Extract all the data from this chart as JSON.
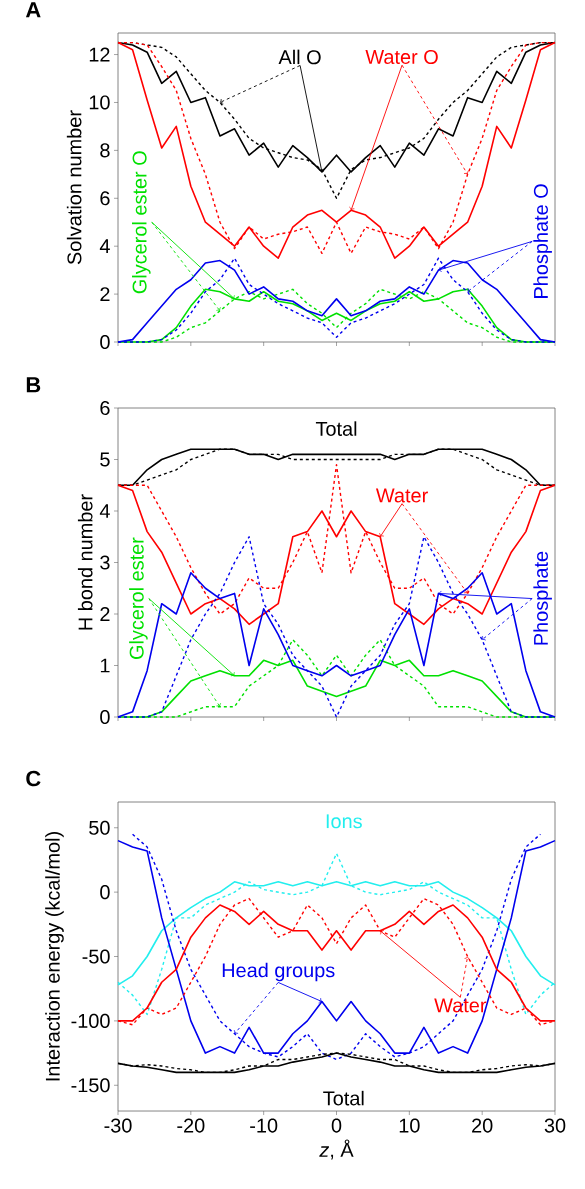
{
  "chart_data": [
    {
      "type": "line",
      "title": "A",
      "ylabel": "Solvation number",
      "xlim": [
        -30,
        30
      ],
      "ylim": [
        0,
        12.9
      ],
      "xticks": [
        -30,
        -20,
        -10,
        0,
        10,
        20,
        30
      ],
      "yticks": [
        0,
        2,
        4,
        6,
        8,
        10,
        12
      ],
      "tick_labels": "y",
      "x": [
        -30,
        -28,
        -26,
        -24,
        -22,
        -20,
        -18,
        -16,
        -14,
        -12,
        -10,
        -8,
        -6,
        -4,
        -2,
        0,
        2,
        4,
        6,
        8,
        10,
        12,
        14,
        16,
        18,
        20,
        22,
        24,
        26,
        28,
        30
      ],
      "series": [
        {
          "name": "All O",
          "color": "#000000",
          "line_style": "solid",
          "values": [
            12.5,
            12.4,
            12.1,
            10.8,
            11.3,
            10.0,
            10.2,
            8.6,
            8.9,
            7.8,
            8.3,
            7.3,
            8.2,
            7.7,
            7.1,
            7.8,
            7.1,
            7.7,
            8.2,
            7.3,
            8.3,
            7.8,
            8.9,
            8.6,
            10.2,
            10.0,
            11.3,
            10.8,
            12.1,
            12.4,
            12.5
          ]
        },
        {
          "color": "#000000",
          "line_style": "dashed",
          "values": [
            12.5,
            12.5,
            12.4,
            12.3,
            11.9,
            11.2,
            10.5,
            10.0,
            9.3,
            8.5,
            8.1,
            7.9,
            7.7,
            7.6,
            7.2,
            6.0,
            7.2,
            7.6,
            7.7,
            7.9,
            8.1,
            8.5,
            9.3,
            10.0,
            10.5,
            11.2,
            11.9,
            12.3,
            12.4,
            12.5,
            12.5
          ]
        },
        {
          "name": "Water O",
          "color": "#ff0000",
          "line_style": "solid",
          "values": [
            12.5,
            12.2,
            10.1,
            8.1,
            9.0,
            6.5,
            5.0,
            4.5,
            4.0,
            4.8,
            4.0,
            3.5,
            4.8,
            5.3,
            5.5,
            5.0,
            5.5,
            5.3,
            4.8,
            3.5,
            4.0,
            4.8,
            4.0,
            4.5,
            5.0,
            6.5,
            9.0,
            8.1,
            10.1,
            12.2,
            12.5
          ]
        },
        {
          "color": "#ff0000",
          "line_style": "dashed",
          "values": [
            12.5,
            12.5,
            12.4,
            11.5,
            10.5,
            8.5,
            7.0,
            5.0,
            3.9,
            4.8,
            4.3,
            4.5,
            4.6,
            4.8,
            3.7,
            5.0,
            3.7,
            4.8,
            4.6,
            4.5,
            4.3,
            4.8,
            3.9,
            5.0,
            7.0,
            8.5,
            10.5,
            11.5,
            12.4,
            12.5,
            12.5
          ]
        },
        {
          "name": "Glycerol ester O",
          "color": "#00e000",
          "line_style": "solid",
          "values": [
            0,
            0,
            0,
            0.1,
            0.6,
            1.5,
            2.2,
            2.1,
            1.8,
            1.7,
            2.1,
            1.7,
            1.6,
            1.3,
            0.9,
            1.2,
            0.9,
            1.3,
            1.6,
            1.7,
            2.1,
            1.7,
            1.8,
            2.1,
            2.2,
            1.5,
            0.6,
            0.1,
            0,
            0,
            0
          ]
        },
        {
          "color": "#00e000",
          "line_style": "dashed",
          "values": [
            0,
            0,
            0,
            0,
            0.2,
            0.6,
            0.8,
            1.3,
            1.8,
            2.1,
            1.8,
            2.0,
            2.2,
            1.6,
            1.2,
            0.6,
            1.2,
            1.6,
            2.2,
            2.0,
            1.8,
            2.1,
            1.8,
            1.3,
            0.8,
            0.6,
            0.2,
            0,
            0,
            0,
            0
          ]
        },
        {
          "name": "Phosphate O",
          "color": "#0000ee",
          "line_style": "solid",
          "values": [
            0,
            0.1,
            0.8,
            1.5,
            2.2,
            2.6,
            3.3,
            3.4,
            3.0,
            2.0,
            2.3,
            1.8,
            1.7,
            1.3,
            1.1,
            1.8,
            1.1,
            1.3,
            1.7,
            1.8,
            2.3,
            2.0,
            3.0,
            3.4,
            3.3,
            2.6,
            2.2,
            1.5,
            0.8,
            0.1,
            0
          ]
        },
        {
          "color": "#0000ee",
          "line_style": "dashed",
          "values": [
            0,
            0,
            0,
            0.1,
            0.5,
            1.2,
            2.1,
            2.6,
            3.5,
            2.4,
            2.0,
            1.6,
            1.3,
            1.0,
            0.8,
            0.2,
            0.8,
            1.0,
            1.3,
            1.6,
            2.0,
            2.4,
            3.5,
            2.6,
            2.1,
            1.2,
            0.5,
            0.1,
            0,
            0,
            0
          ]
        }
      ]
    },
    {
      "type": "line",
      "title": "B",
      "ylabel": "H bond number",
      "xlim": [
        -30,
        30
      ],
      "ylim": [
        0,
        6
      ],
      "xticks": [
        -30,
        -20,
        -10,
        0,
        10,
        20,
        30
      ],
      "yticks": [
        0,
        1,
        2,
        3,
        4,
        5,
        6
      ],
      "tick_labels": "y",
      "x": [
        -30,
        -28,
        -26,
        -24,
        -22,
        -20,
        -18,
        -16,
        -14,
        -12,
        -10,
        -8,
        -6,
        -4,
        -2,
        0,
        2,
        4,
        6,
        8,
        10,
        12,
        14,
        16,
        18,
        20,
        22,
        24,
        26,
        28,
        30
      ],
      "series": [
        {
          "name": "Total",
          "color": "#000000",
          "line_style": "solid",
          "values": [
            4.5,
            4.5,
            4.8,
            5.0,
            5.1,
            5.2,
            5.2,
            5.2,
            5.2,
            5.1,
            5.1,
            5.0,
            5.1,
            5.1,
            5.1,
            5.1,
            5.1,
            5.1,
            5.1,
            5.0,
            5.1,
            5.1,
            5.2,
            5.2,
            5.2,
            5.2,
            5.1,
            5.0,
            4.8,
            4.5,
            4.5
          ]
        },
        {
          "color": "#000000",
          "line_style": "dashed",
          "values": [
            4.5,
            4.5,
            4.6,
            4.7,
            4.8,
            5.0,
            5.1,
            5.2,
            5.2,
            5.1,
            5.1,
            5.1,
            5.0,
            5.0,
            5.0,
            5.0,
            5.0,
            5.0,
            5.0,
            5.1,
            5.1,
            5.1,
            5.2,
            5.2,
            5.1,
            5.0,
            4.8,
            4.7,
            4.6,
            4.5,
            4.5
          ]
        },
        {
          "name": "Water",
          "color": "#ff0000",
          "line_style": "solid",
          "values": [
            4.5,
            4.4,
            3.6,
            3.2,
            2.6,
            2.0,
            2.2,
            2.3,
            2.1,
            1.8,
            2.0,
            2.2,
            3.5,
            3.6,
            4.0,
            3.5,
            4.0,
            3.6,
            3.5,
            2.2,
            2.0,
            1.8,
            2.1,
            2.3,
            2.2,
            2.0,
            2.6,
            3.2,
            3.6,
            4.4,
            4.5
          ]
        },
        {
          "color": "#ff0000",
          "line_style": "dashed",
          "values": [
            4.5,
            4.5,
            4.5,
            4.0,
            3.5,
            2.9,
            2.4,
            2.0,
            2.2,
            2.7,
            2.5,
            2.5,
            3.0,
            3.6,
            2.8,
            4.9,
            2.8,
            3.6,
            3.0,
            2.5,
            2.5,
            2.7,
            2.2,
            2.0,
            2.4,
            2.9,
            3.5,
            4.0,
            4.5,
            4.5,
            4.5
          ]
        },
        {
          "name": "Glycerol ester",
          "color": "#00e000",
          "line_style": "solid",
          "values": [
            0,
            0,
            0,
            0.1,
            0.4,
            0.7,
            0.8,
            0.9,
            0.8,
            0.8,
            1.1,
            1.0,
            1.1,
            0.6,
            0.5,
            0.4,
            0.5,
            0.6,
            1.1,
            1.0,
            1.1,
            0.8,
            0.8,
            0.9,
            0.8,
            0.7,
            0.4,
            0.1,
            0,
            0,
            0
          ]
        },
        {
          "color": "#00e000",
          "line_style": "dashed",
          "values": [
            0,
            0,
            0,
            0,
            0,
            0.1,
            0.2,
            0.2,
            0.2,
            0.6,
            0.8,
            1.0,
            1.5,
            1.2,
            0.8,
            1.2,
            0.8,
            1.2,
            1.5,
            1.0,
            0.8,
            0.6,
            0.2,
            0.2,
            0.2,
            0.1,
            0,
            0,
            0,
            0,
            0
          ]
        },
        {
          "name": "Phosphate",
          "color": "#0000ee",
          "line_style": "solid",
          "values": [
            0,
            0.1,
            0.9,
            2.2,
            2.0,
            2.8,
            2.5,
            2.3,
            2.4,
            1.0,
            2.1,
            1.6,
            1.0,
            0.9,
            0.8,
            1.0,
            0.8,
            0.9,
            1.0,
            1.6,
            2.1,
            1.0,
            2.4,
            2.3,
            2.5,
            2.8,
            2.0,
            2.2,
            0.9,
            0.1,
            0
          ]
        },
        {
          "color": "#0000ee",
          "line_style": "dashed",
          "values": [
            0,
            0,
            0,
            0.1,
            0.8,
            1.5,
            2.0,
            2.4,
            3.0,
            3.5,
            2.2,
            1.8,
            1.2,
            0.9,
            0.6,
            0,
            0.6,
            0.9,
            1.2,
            1.8,
            2.2,
            3.5,
            3.0,
            2.4,
            2.0,
            1.5,
            0.8,
            0.1,
            0,
            0,
            0
          ]
        }
      ]
    },
    {
      "type": "line",
      "title": "C",
      "ylabel": "Interaction energy (kcal/mol)",
      "xlabel": "*z*, Å",
      "xlim": [
        -30,
        30
      ],
      "ylim": [
        -170,
        70
      ],
      "xticks": [
        -30,
        -20,
        -10,
        0,
        10,
        20,
        30
      ],
      "yticks": [
        -150,
        -100,
        -50,
        0,
        50
      ],
      "x": [
        -30,
        -28,
        -26,
        -24,
        -22,
        -20,
        -18,
        -16,
        -14,
        -12,
        -10,
        -8,
        -6,
        -4,
        -2,
        0,
        2,
        4,
        6,
        8,
        10,
        12,
        14,
        16,
        18,
        20,
        22,
        24,
        26,
        28,
        30
      ],
      "series": [
        {
          "name": "Ions",
          "color": "#22eeee",
          "line_style": "solid",
          "values": [
            -72,
            -65,
            -50,
            -30,
            -20,
            -12,
            -5,
            0,
            8,
            5,
            5,
            8,
            5,
            8,
            5,
            8,
            5,
            8,
            5,
            8,
            5,
            5,
            8,
            0,
            -5,
            -12,
            -20,
            -30,
            -50,
            -65,
            -72
          ]
        },
        {
          "color": "#22eeee",
          "line_style": "dashed",
          "values": [
            -70,
            -80,
            -95,
            -60,
            -20,
            -20,
            -10,
            -5,
            0,
            8,
            2,
            0,
            -2,
            0,
            5,
            30,
            5,
            0,
            -2,
            0,
            2,
            8,
            0,
            -5,
            -10,
            -20,
            -20,
            -60,
            -95,
            -80,
            -70
          ]
        },
        {
          "name": "Head groups",
          "color": "#0000ee",
          "line_style": "solid",
          "values": [
            40,
            35,
            32,
            -20,
            -60,
            -100,
            -125,
            -120,
            -125,
            -105,
            -125,
            -125,
            -110,
            -100,
            -85,
            -100,
            -85,
            -100,
            -110,
            -125,
            -125,
            -105,
            -125,
            -120,
            -125,
            -100,
            -60,
            -20,
            32,
            35,
            40
          ]
        },
        {
          "color": "#0000ee",
          "line_style": "dashed",
          "values": [
            null,
            45,
            35,
            10,
            -30,
            -60,
            -80,
            -100,
            -110,
            -120,
            -125,
            -128,
            -120,
            -110,
            -125,
            -130,
            -125,
            -110,
            -120,
            -128,
            -125,
            -120,
            -110,
            -100,
            -80,
            -60,
            -30,
            10,
            35,
            45,
            null
          ]
        },
        {
          "name": "Water",
          "color": "#ff0000",
          "line_style": "solid",
          "values": [
            -100,
            -100,
            -90,
            -70,
            -60,
            -35,
            -20,
            -10,
            -15,
            -25,
            -15,
            -25,
            -30,
            -30,
            -45,
            -30,
            -45,
            -30,
            -30,
            -25,
            -15,
            -25,
            -15,
            -10,
            -20,
            -35,
            -60,
            -70,
            -90,
            -100,
            -100
          ]
        },
        {
          "color": "#ff0000",
          "line_style": "dashed",
          "values": [
            -100,
            -103,
            -90,
            -95,
            -90,
            -70,
            -50,
            -25,
            -10,
            -5,
            -20,
            -35,
            -30,
            -10,
            -20,
            -40,
            -20,
            -10,
            -30,
            -35,
            -20,
            -5,
            -10,
            -25,
            -50,
            -70,
            -90,
            -95,
            -90,
            -103,
            -100
          ]
        },
        {
          "name": "Total",
          "color": "#000000",
          "line_style": "solid",
          "values": [
            -133,
            -135,
            -136,
            -138,
            -140,
            -140,
            -140,
            -140,
            -140,
            -138,
            -135,
            -135,
            -132,
            -130,
            -128,
            -125,
            -128,
            -130,
            -132,
            -135,
            -135,
            -138,
            -140,
            -140,
            -140,
            -140,
            -140,
            -138,
            -136,
            -135,
            -133
          ]
        },
        {
          "color": "#000000",
          "line_style": "dashed",
          "values": [
            -133,
            -135,
            -134,
            -135,
            -137,
            -138,
            -140,
            -140,
            -138,
            -135,
            -135,
            -130,
            -130,
            -128,
            -126,
            -125,
            -126,
            -128,
            -130,
            -130,
            -135,
            -135,
            -138,
            -140,
            -140,
            -138,
            -137,
            -135,
            -134,
            -135,
            -133
          ]
        }
      ]
    }
  ]
}
